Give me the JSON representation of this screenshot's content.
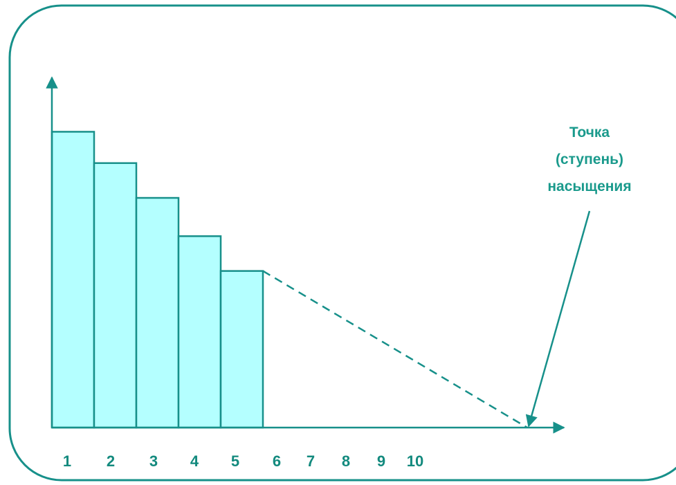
{
  "chart_data": {
    "type": "bar",
    "categories": [
      "1",
      "2",
      "3",
      "4",
      "5",
      "6",
      "7",
      "8",
      "9",
      "10"
    ],
    "values": [
      85,
      76,
      66,
      55,
      45,
      null,
      null,
      null,
      null,
      null
    ],
    "color": "#b4ffff",
    "ylim": [
      0,
      100
    ],
    "annotation": [
      "Точка",
      "(ступень)",
      "насыщения"
    ]
  }
}
